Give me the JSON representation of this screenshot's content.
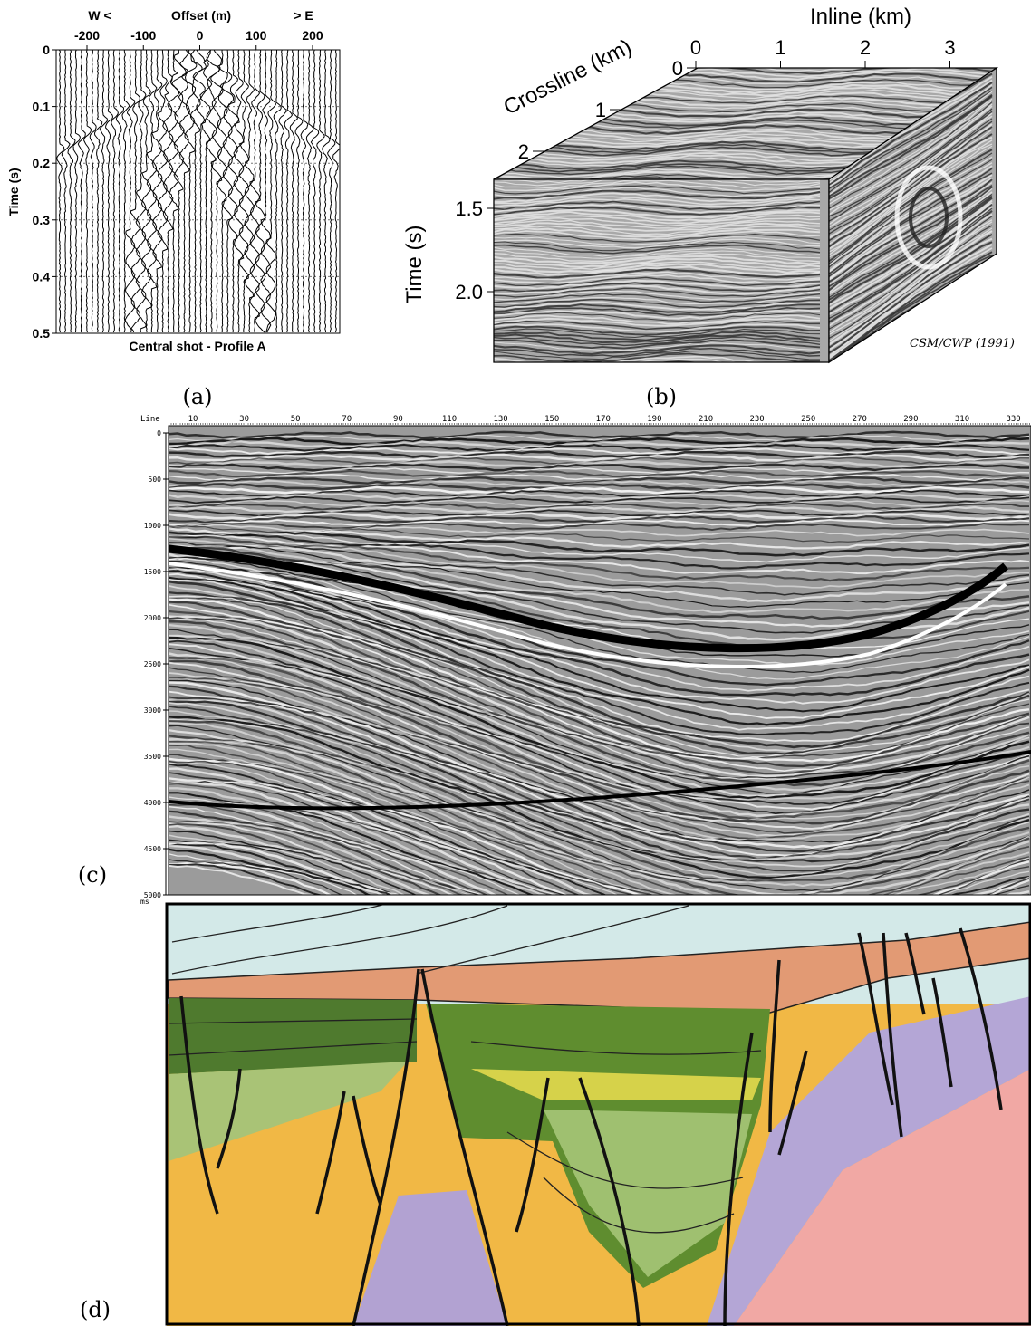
{
  "panels": [
    {
      "label": "(a)",
      "header_left": "W <",
      "header_title": "Offset (m)",
      "header_right": "> E",
      "xticks": [
        "-200",
        "-100",
        "0",
        "100",
        "200"
      ],
      "yticks": [
        "0",
        "0.1",
        "0.2",
        "0.3",
        "0.4",
        "0.5"
      ],
      "ylabel": "Time (s)",
      "caption": "Central shot - Profile A"
    },
    {
      "label": "(b)",
      "inline_label": "Inline (km)",
      "inline_ticks": [
        "0",
        "1",
        "2",
        "3"
      ],
      "crossline_label": "Crossline (km)",
      "crossline_ticks": [
        "0",
        "1",
        "2"
      ],
      "ylabel": "Time (s)",
      "yticks": [
        "1.5",
        "2.0"
      ],
      "credit": "CSM/CWP (1991)"
    },
    {
      "label": "(c)",
      "xlabel": "Line",
      "xticks": [
        "10",
        "30",
        "50",
        "70",
        "90",
        "110",
        "130",
        "150",
        "170",
        "190",
        "210",
        "230",
        "250",
        "270",
        "290",
        "310",
        "330"
      ],
      "yticks": [
        "0",
        "500",
        "1000",
        "1500",
        "2000",
        "2500",
        "3000",
        "3500",
        "4000",
        "4500",
        "5000"
      ],
      "yunit": "ms"
    },
    {
      "label": "(d)"
    }
  ]
}
